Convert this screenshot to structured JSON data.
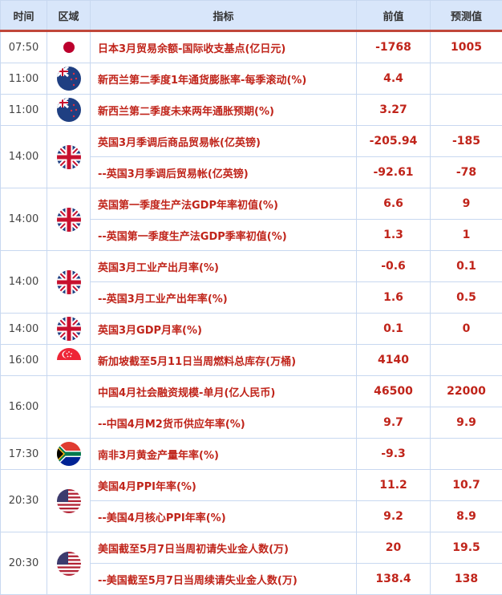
{
  "headers": {
    "time": "时间",
    "region": "区域",
    "indicator": "指标",
    "previous": "前值",
    "forecast": "预测值"
  },
  "colors": {
    "header_bg": "#d8e6fa",
    "accent_line": "#c0473a",
    "value_text": "#c0241a"
  },
  "groups": [
    {
      "time": "07:50",
      "flag": "japan-flag",
      "rows": [
        {
          "indicator": "日本3月贸易余额-国际收支基点(亿日元)",
          "previous": "-1768",
          "forecast": "1005"
        }
      ]
    },
    {
      "time": "11:00",
      "flag": "new-zealand-flag",
      "rows": [
        {
          "indicator": "新西兰第二季度1年通货膨胀率-每季滚动(%)",
          "previous": "4.4",
          "forecast": ""
        }
      ]
    },
    {
      "time": "11:00",
      "flag": "new-zealand-flag",
      "rows": [
        {
          "indicator": "新西兰第二季度未来两年通胀预期(%)",
          "previous": "3.27",
          "forecast": ""
        }
      ]
    },
    {
      "time": "14:00",
      "flag": "uk-flag",
      "rows": [
        {
          "indicator": "英国3月季调后商品贸易帐(亿英镑)",
          "previous": "-205.94",
          "forecast": "-185"
        },
        {
          "indicator": "--英国3月季调后贸易帐(亿英镑)",
          "previous": "-92.61",
          "forecast": "-78"
        }
      ]
    },
    {
      "time": "14:00",
      "flag": "uk-flag",
      "rows": [
        {
          "indicator": "英国第一季度生产法GDP年率初值(%)",
          "previous": "6.6",
          "forecast": "9"
        },
        {
          "indicator": "--英国第一季度生产法GDP季率初值(%)",
          "previous": "1.3",
          "forecast": "1"
        }
      ]
    },
    {
      "time": "14:00",
      "flag": "uk-flag",
      "rows": [
        {
          "indicator": "英国3月工业产出月率(%)",
          "previous": "-0.6",
          "forecast": "0.1"
        },
        {
          "indicator": "--英国3月工业产出年率(%)",
          "previous": "1.6",
          "forecast": "0.5"
        }
      ]
    },
    {
      "time": "14:00",
      "flag": "uk-flag",
      "rows": [
        {
          "indicator": "英国3月GDP月率(%)",
          "previous": "0.1",
          "forecast": "0"
        }
      ]
    },
    {
      "time": "16:00",
      "flag": "singapore-flag",
      "rows": [
        {
          "indicator": "新加坡截至5月11日当周燃料总库存(万桶)",
          "previous": "4140",
          "forecast": ""
        }
      ]
    },
    {
      "time": "16:00",
      "flag": "china-flag-blank",
      "rows": [
        {
          "indicator": "中国4月社会融资规模-单月(亿人民币)",
          "previous": "46500",
          "forecast": "22000"
        },
        {
          "indicator": "--中国4月M2货币供应年率(%)",
          "previous": "9.7",
          "forecast": "9.9"
        }
      ]
    },
    {
      "time": "17:30",
      "flag": "south-africa-flag",
      "rows": [
        {
          "indicator": "南非3月黄金产量年率(%)",
          "previous": "-9.3",
          "forecast": ""
        }
      ]
    },
    {
      "time": "20:30",
      "flag": "us-flag",
      "rows": [
        {
          "indicator": "美国4月PPI年率(%)",
          "previous": "11.2",
          "forecast": "10.7"
        },
        {
          "indicator": "--美国4月核心PPI年率(%)",
          "previous": "9.2",
          "forecast": "8.9"
        }
      ]
    },
    {
      "time": "20:30",
      "flag": "us-flag",
      "rows": [
        {
          "indicator": "美国截至5月7日当周初请失业金人数(万)",
          "previous": "20",
          "forecast": "19.5"
        },
        {
          "indicator": "--美国截至5月7日当周续请失业金人数(万)",
          "previous": "138.4",
          "forecast": "138"
        }
      ]
    }
  ]
}
